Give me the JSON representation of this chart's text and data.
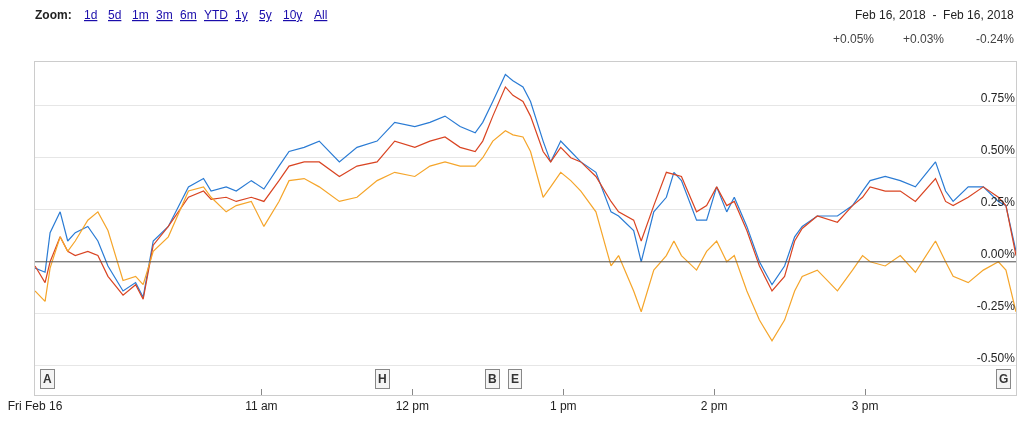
{
  "chart_data": {
    "type": "line",
    "x": [
      "2018-02-16T09:30",
      "2018-02-16T09:34",
      "2018-02-16T09:36",
      "2018-02-16T09:40",
      "2018-02-16T09:43",
      "2018-02-16T09:46",
      "2018-02-16T09:51",
      "2018-02-16T09:55",
      "2018-02-16T09:59",
      "2018-02-16T10:05",
      "2018-02-16T10:10",
      "2018-02-16T10:13",
      "2018-02-16T10:17",
      "2018-02-16T10:23",
      "2018-02-16T10:31",
      "2018-02-16T10:37",
      "2018-02-16T10:40",
      "2018-02-16T10:46",
      "2018-02-16T10:50",
      "2018-02-16T10:56",
      "2018-02-16T11:01",
      "2018-02-16T11:07",
      "2018-02-16T11:11",
      "2018-02-16T11:17",
      "2018-02-16T11:23",
      "2018-02-16T11:31",
      "2018-02-16T11:38",
      "2018-02-16T11:46",
      "2018-02-16T11:53",
      "2018-02-16T12:01",
      "2018-02-16T12:07",
      "2018-02-16T12:13",
      "2018-02-16T12:19",
      "2018-02-16T12:25",
      "2018-02-16T12:28",
      "2018-02-16T12:32",
      "2018-02-16T12:37",
      "2018-02-16T12:40",
      "2018-02-16T12:44",
      "2018-02-16T12:47",
      "2018-02-16T12:52",
      "2018-02-16T12:55",
      "2018-02-16T12:59",
      "2018-02-16T13:03",
      "2018-02-16T13:07",
      "2018-02-16T13:13",
      "2018-02-16T13:19",
      "2018-02-16T13:22",
      "2018-02-16T13:28",
      "2018-02-16T13:31",
      "2018-02-16T13:36",
      "2018-02-16T13:41",
      "2018-02-16T13:44",
      "2018-02-16T13:47",
      "2018-02-16T13:53",
      "2018-02-16T13:57",
      "2018-02-16T14:01",
      "2018-02-16T14:05",
      "2018-02-16T14:08",
      "2018-02-16T14:13",
      "2018-02-16T14:18",
      "2018-02-16T14:23",
      "2018-02-16T14:28",
      "2018-02-16T14:32",
      "2018-02-16T14:35",
      "2018-02-16T14:41",
      "2018-02-16T14:49",
      "2018-02-16T14:55",
      "2018-02-16T14:59",
      "2018-02-16T15:02",
      "2018-02-16T15:08",
      "2018-02-16T15:14",
      "2018-02-16T15:20",
      "2018-02-16T15:28",
      "2018-02-16T15:32",
      "2018-02-16T15:35",
      "2018-02-16T15:41",
      "2018-02-16T15:47",
      "2018-02-16T15:53",
      "2018-02-16T15:56",
      "2018-02-16T16:00"
    ],
    "series": [
      {
        "color": "#2a7bd4",
        "values": [
          -0.03,
          -0.05,
          0.14,
          0.24,
          0.1,
          0.14,
          0.17,
          0.1,
          -0.02,
          -0.14,
          -0.1,
          -0.17,
          0.1,
          0.17,
          0.36,
          0.4,
          0.34,
          0.36,
          0.34,
          0.39,
          0.35,
          0.46,
          0.53,
          0.55,
          0.58,
          0.48,
          0.55,
          0.58,
          0.67,
          0.65,
          0.67,
          0.7,
          0.65,
          0.62,
          0.67,
          0.77,
          0.9,
          0.87,
          0.84,
          0.77,
          0.58,
          0.48,
          0.58,
          0.53,
          0.48,
          0.43,
          0.24,
          0.22,
          0.15,
          0.0,
          0.24,
          0.31,
          0.43,
          0.39,
          0.2,
          0.2,
          0.36,
          0.24,
          0.31,
          0.17,
          0.0,
          -0.11,
          -0.02,
          0.12,
          0.17,
          0.22,
          0.22,
          0.27,
          0.34,
          0.39,
          0.41,
          0.39,
          0.36,
          0.48,
          0.34,
          0.29,
          0.36,
          0.36,
          0.29,
          0.27,
          0.05
        ]
      },
      {
        "color": "#d94422",
        "values": [
          -0.02,
          -0.1,
          0.0,
          0.12,
          0.05,
          0.03,
          0.05,
          0.03,
          -0.07,
          -0.16,
          -0.11,
          -0.18,
          0.08,
          0.17,
          0.31,
          0.34,
          0.3,
          0.31,
          0.29,
          0.31,
          0.29,
          0.39,
          0.46,
          0.48,
          0.48,
          0.41,
          0.46,
          0.48,
          0.58,
          0.55,
          0.58,
          0.6,
          0.55,
          0.53,
          0.58,
          0.7,
          0.84,
          0.8,
          0.77,
          0.7,
          0.53,
          0.48,
          0.55,
          0.5,
          0.48,
          0.41,
          0.29,
          0.24,
          0.2,
          0.1,
          0.27,
          0.43,
          0.42,
          0.41,
          0.24,
          0.27,
          0.36,
          0.27,
          0.29,
          0.15,
          -0.02,
          -0.14,
          -0.07,
          0.1,
          0.16,
          0.22,
          0.19,
          0.27,
          0.31,
          0.36,
          0.34,
          0.34,
          0.29,
          0.4,
          0.29,
          0.27,
          0.31,
          0.36,
          0.31,
          0.27,
          0.03
        ]
      },
      {
        "color": "#f5a52a",
        "values": [
          -0.14,
          -0.19,
          -0.03,
          0.12,
          0.05,
          0.1,
          0.2,
          0.24,
          0.15,
          -0.09,
          -0.07,
          -0.11,
          0.05,
          0.12,
          0.34,
          0.36,
          0.31,
          0.24,
          0.27,
          0.29,
          0.17,
          0.29,
          0.39,
          0.4,
          0.36,
          0.29,
          0.31,
          0.39,
          0.43,
          0.41,
          0.46,
          0.48,
          0.46,
          0.46,
          0.5,
          0.58,
          0.63,
          0.61,
          0.6,
          0.53,
          0.31,
          0.36,
          0.43,
          0.39,
          0.34,
          0.24,
          -0.02,
          0.03,
          -0.14,
          -0.24,
          -0.04,
          0.03,
          0.1,
          0.03,
          -0.04,
          0.05,
          0.1,
          0.0,
          0.03,
          -0.14,
          -0.28,
          -0.38,
          -0.28,
          -0.14,
          -0.07,
          -0.04,
          -0.14,
          -0.04,
          0.03,
          0.0,
          -0.02,
          0.03,
          -0.05,
          0.1,
          0.0,
          -0.07,
          -0.1,
          -0.04,
          0.0,
          -0.04,
          -0.24
        ]
      }
    ],
    "xlim": [
      "2018-02-16T09:30",
      "2018-02-16T16:00"
    ],
    "xticks": [
      {
        "value": "2018-02-16T09:30",
        "label": "Fri Feb 16"
      },
      {
        "value": "2018-02-16T11:00",
        "label": "11 am"
      },
      {
        "value": "2018-02-16T12:00",
        "label": "12 pm"
      },
      {
        "value": "2018-02-16T13:00",
        "label": "1 pm"
      },
      {
        "value": "2018-02-16T14:00",
        "label": "2 pm"
      },
      {
        "value": "2018-02-16T15:00",
        "label": "3 pm"
      }
    ],
    "ylim": [
      -0.64,
      0.96
    ],
    "yticks": [
      {
        "value": -0.5,
        "label": "-0.50%"
      },
      {
        "value": -0.25,
        "label": "-0.25%"
      },
      {
        "value": 0,
        "label": "0.00%"
      },
      {
        "value": 0.25,
        "label": "0.25%"
      },
      {
        "value": 0.5,
        "label": "0.50%"
      },
      {
        "value": 0.75,
        "label": "0.75%"
      }
    ],
    "ref_lines": [
      {
        "axis": "y",
        "value": 0,
        "color": "#555555"
      }
    ],
    "grid": "y",
    "marker": "none",
    "line_style": "solid",
    "annotations": [
      "Zoom:",
      "1d",
      "5d",
      "1m",
      "3m",
      "6m",
      "YTD",
      "1y",
      "5y",
      "10y",
      "All",
      "Feb 16, 2018  -  Feb 16, 2018",
      "+0.05%",
      "+0.03%",
      "-0.24%",
      {
        "text": "A",
        "x": "2018-02-16T09:35"
      },
      {
        "text": "H",
        "x": "2018-02-16T11:48"
      },
      {
        "text": "B",
        "x": "2018-02-16T12:32"
      },
      {
        "text": "E",
        "x": "2018-02-16T12:41"
      },
      {
        "text": "G",
        "x": "2018-02-16T15:55"
      }
    ]
  }
}
